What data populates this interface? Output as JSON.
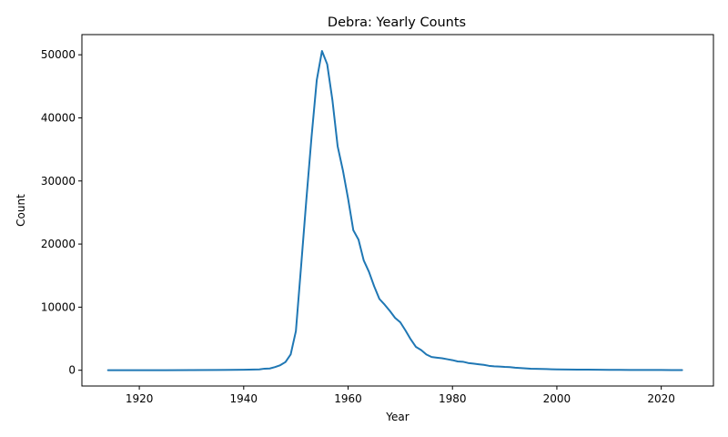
{
  "chart_data": {
    "type": "line",
    "title": "Debra: Yearly Counts",
    "xlabel": "Year",
    "ylabel": "Count",
    "xlim": [
      1909,
      2030
    ],
    "ylim": [
      -2500,
      53200
    ],
    "x_ticks": [
      1920,
      1940,
      1960,
      1980,
      2000,
      2020
    ],
    "y_ticks": [
      0,
      10000,
      20000,
      30000,
      40000,
      50000
    ],
    "grid": false,
    "legend": "none",
    "series": [
      {
        "color": "#1f77b4",
        "x": [
          1914,
          1920,
          1925,
          1930,
          1935,
          1940,
          1943,
          1944,
          1945,
          1946,
          1947,
          1948,
          1949,
          1950,
          1951,
          1952,
          1953,
          1954,
          1955,
          1956,
          1957,
          1958,
          1959,
          1960,
          1961,
          1962,
          1963,
          1964,
          1965,
          1966,
          1967,
          1968,
          1969,
          1970,
          1971,
          1972,
          1973,
          1974,
          1975,
          1976,
          1977,
          1978,
          1979,
          1980,
          1981,
          1982,
          1983,
          1984,
          1985,
          1986,
          1987,
          1988,
          1989,
          1990,
          1991,
          1992,
          1993,
          1994,
          1995,
          1996,
          1997,
          1998,
          1999,
          2000,
          2002,
          2004,
          2006,
          2008,
          2010,
          2012,
          2014,
          2016,
          2018,
          2020,
          2022,
          2024
        ],
        "y": [
          5,
          8,
          15,
          25,
          45,
          80,
          130,
          250,
          280,
          500,
          800,
          1300,
          2500,
          6200,
          16500,
          27000,
          37000,
          46000,
          50600,
          48500,
          42800,
          35500,
          31700,
          27200,
          22200,
          20700,
          17400,
          15600,
          13300,
          11300,
          10400,
          9400,
          8300,
          7600,
          6300,
          4900,
          3700,
          3200,
          2500,
          2100,
          2000,
          1900,
          1750,
          1600,
          1400,
          1350,
          1150,
          1050,
          950,
          850,
          700,
          620,
          580,
          530,
          500,
          400,
          350,
          300,
          250,
          220,
          200,
          180,
          160,
          140,
          120,
          100,
          90,
          80,
          70,
          60,
          50,
          45,
          40,
          35,
          30,
          25
        ]
      }
    ]
  }
}
